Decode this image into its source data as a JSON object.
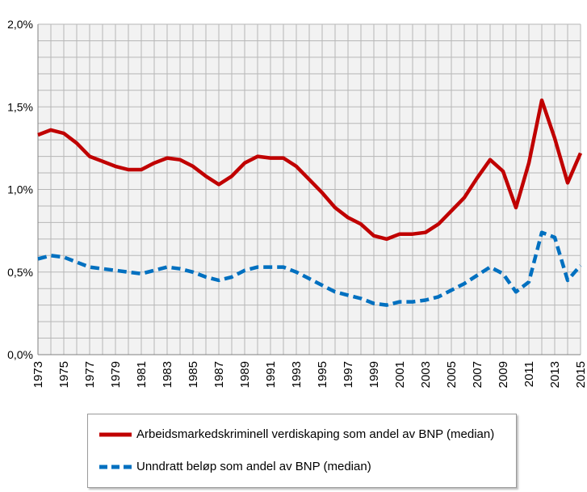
{
  "chart_data": {
    "type": "line",
    "title": "",
    "xlabel": "",
    "ylabel": "",
    "ylim": [
      0,
      2.0
    ],
    "yticks": [
      "0,0%",
      "0,5%",
      "1,0%",
      "1,5%",
      "2,0%"
    ],
    "x": [
      1973,
      1974,
      1975,
      1976,
      1977,
      1978,
      1979,
      1980,
      1981,
      1982,
      1983,
      1984,
      1985,
      1986,
      1987,
      1988,
      1989,
      1990,
      1991,
      1992,
      1993,
      1994,
      1995,
      1996,
      1997,
      1998,
      1999,
      2000,
      2001,
      2002,
      2003,
      2004,
      2005,
      2006,
      2007,
      2008,
      2009,
      2010,
      2011,
      2012,
      2013,
      2014,
      2015
    ],
    "xtick_labels": [
      "1973",
      "1975",
      "1977",
      "1979",
      "1981",
      "1983",
      "1985",
      "1987",
      "1989",
      "1991",
      "1993",
      "1995",
      "1997",
      "1999",
      "2001",
      "2003",
      "2005",
      "2007",
      "2009",
      "2011",
      "2013",
      "2015"
    ],
    "grid": true,
    "legend_position": "bottom",
    "series": [
      {
        "name": "Arbeidsmarkedskriminell verdiskaping som andel av BNP (median)",
        "color": "#c00000",
        "style": "solid",
        "values": [
          1.33,
          1.36,
          1.34,
          1.28,
          1.2,
          1.17,
          1.14,
          1.12,
          1.12,
          1.16,
          1.19,
          1.18,
          1.14,
          1.08,
          1.03,
          1.08,
          1.16,
          1.2,
          1.19,
          1.19,
          1.14,
          1.06,
          0.98,
          0.89,
          0.83,
          0.79,
          0.72,
          0.7,
          0.73,
          0.73,
          0.74,
          0.79,
          0.87,
          0.95,
          1.07,
          1.18,
          1.11,
          0.89,
          1.16,
          1.54,
          1.31,
          1.04,
          1.22
        ]
      },
      {
        "name": "Unndratt beløp som andel av BNP (median)",
        "color": "#0070c0",
        "style": "dashed",
        "values": [
          0.58,
          0.6,
          0.59,
          0.56,
          0.53,
          0.52,
          0.51,
          0.5,
          0.49,
          0.51,
          0.53,
          0.52,
          0.5,
          0.47,
          0.45,
          0.47,
          0.51,
          0.53,
          0.53,
          0.53,
          0.5,
          0.46,
          0.42,
          0.38,
          0.36,
          0.34,
          0.31,
          0.3,
          0.32,
          0.32,
          0.33,
          0.35,
          0.39,
          0.43,
          0.48,
          0.53,
          0.49,
          0.38,
          0.44,
          0.74,
          0.71,
          0.45,
          0.54
        ]
      }
    ]
  }
}
